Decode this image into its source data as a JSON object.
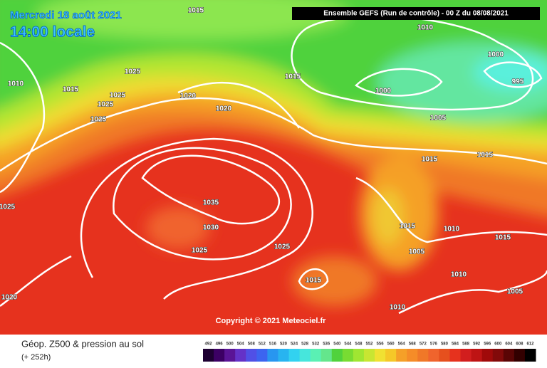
{
  "header": {
    "date": "Mercredi 18 août 2021",
    "time": "14:00 locale",
    "run": "Ensemble GEFS  (Run de contrôle)  -  00 Z du 08/08/2021"
  },
  "map": {
    "labels": [
      "1015",
      "1010",
      "1000",
      "995",
      "1000",
      "1025",
      "1015",
      "1010",
      "1025",
      "1025",
      "1025",
      "1020",
      "1020",
      "1015",
      "1005",
      "1015",
      "1015",
      "1035",
      "1030",
      "1025",
      "1025",
      "1015",
      "1010",
      "1015",
      "1005",
      "1015",
      "1010",
      "1005",
      "1010",
      "1020",
      "1025"
    ],
    "copyright": "Copyright © 2021 Meteociel.fr"
  },
  "footer": {
    "title": "Géop. Z500 & pression au sol",
    "lead": "(+ 252h)"
  },
  "legend": {
    "values": [
      492,
      496,
      500,
      504,
      508,
      512,
      516,
      520,
      524,
      528,
      532,
      536,
      540,
      544,
      548,
      552,
      556,
      560,
      564,
      568,
      572,
      576,
      580,
      584,
      588,
      592,
      596,
      600,
      604,
      608,
      612
    ]
  }
}
